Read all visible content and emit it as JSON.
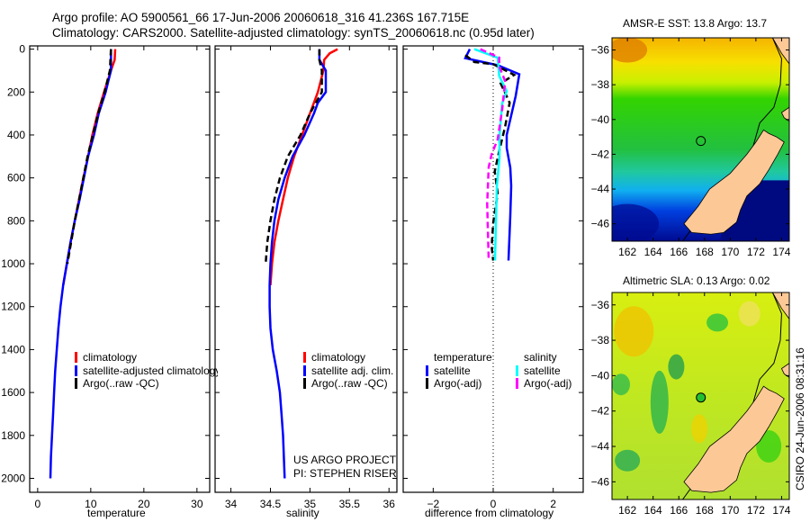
{
  "header": {
    "line1": "Argo profile: AO 5900561_66 17-Jun-2006 20060618_316 41.236S 167.715E",
    "line2": "Climatology: CARS2000. Satellite-adjusted climatology: synTS_20060618.nc (0.95d later)"
  },
  "colors": {
    "climatology": "#ff0000",
    "satellite": "#0000ff",
    "argo": "#000000",
    "sal_satellite": "#00ffff",
    "sal_argo": "#ff00ff"
  },
  "chart_data": [
    {
      "type": "line",
      "title": "",
      "xlabel": "temperature",
      "ylabel": "",
      "xlim": [
        -1.5,
        32.4
      ],
      "ylim": [
        2065,
        -15
      ],
      "xticks": [
        0,
        10,
        20,
        30
      ],
      "yticks": [
        0,
        200,
        400,
        600,
        800,
        1000,
        1200,
        1400,
        1600,
        1800,
        2000
      ],
      "legend": [
        "climatology",
        "satellite-adjusted climatology",
        "Argo(..raw -QC)"
      ],
      "legend_position": "lower-middle",
      "series": [
        {
          "name": "climatology",
          "color": "#ff0000",
          "dash": false,
          "depth": [
            0,
            50,
            100,
            200,
            300,
            400,
            500,
            600,
            700,
            800,
            900,
            1000,
            1100
          ],
          "values": [
            14.6,
            14.5,
            13.8,
            12.5,
            11.3,
            10.3,
            9.5,
            8.6,
            7.8,
            7.0,
            6.2,
            5.5,
            4.8
          ]
        },
        {
          "name": "satellite-adjusted climatology",
          "color": "#0000ff",
          "dash": false,
          "depth": [
            0,
            100,
            150,
            200,
            300,
            400,
            500,
            600,
            700,
            800,
            900,
            1000,
            1100,
            1200,
            1300,
            1400,
            1500,
            1600,
            1700,
            1800,
            1900,
            2000
          ],
          "values": [
            13.8,
            13.8,
            13.3,
            12.8,
            11.5,
            10.6,
            9.5,
            8.7,
            7.9,
            7.0,
            6.2,
            5.5,
            4.8,
            4.3,
            3.9,
            3.6,
            3.3,
            3.1,
            2.9,
            2.7,
            2.5,
            2.4
          ]
        },
        {
          "name": "Argo(..raw -QC)",
          "color": "#000000",
          "dash": true,
          "depth": [
            0,
            100,
            200,
            300,
            400,
            500,
            600,
            700,
            800,
            900,
            1000
          ],
          "values": [
            13.8,
            13.6,
            12.6,
            11.4,
            10.4,
            9.4,
            8.6,
            7.8,
            7.0,
            6.3,
            5.6
          ]
        }
      ]
    },
    {
      "type": "line",
      "xlabel": "salinity",
      "xlim": [
        33.8,
        36.1
      ],
      "ylim": [
        2065,
        -15
      ],
      "xticks": [
        34,
        34.5,
        35,
        35.5,
        36
      ],
      "legend": [
        "climatology",
        "satellite adj. clim.",
        "Argo(..raw -QC)"
      ],
      "legend_position": "lower-middle",
      "annotation": [
        "US ARGO PROJECT",
        "PI: STEPHEN RISER"
      ],
      "series": [
        {
          "name": "climatology",
          "color": "#ff0000",
          "dash": false,
          "depth": [
            0,
            20,
            50,
            100,
            200,
            300,
            400,
            500,
            600,
            700,
            800,
            900,
            1000,
            1100
          ],
          "values": [
            35.35,
            35.25,
            35.18,
            35.17,
            35.1,
            35.0,
            34.9,
            34.8,
            34.72,
            34.66,
            34.6,
            34.55,
            34.52,
            34.5
          ]
        },
        {
          "name": "satellite adj. clim.",
          "color": "#0000ff",
          "dash": false,
          "depth": [
            0,
            50,
            100,
            150,
            200,
            250,
            300,
            400,
            500,
            600,
            700,
            800,
            900,
            1000,
            1100,
            1200,
            1300,
            1400,
            1500,
            1600,
            1700,
            1800,
            1900,
            2000
          ],
          "values": [
            35.12,
            35.12,
            35.2,
            35.2,
            35.2,
            35.1,
            35.05,
            34.93,
            34.78,
            34.68,
            34.6,
            34.55,
            34.52,
            34.5,
            34.49,
            34.49,
            34.5,
            34.53,
            34.58,
            34.62,
            34.64,
            34.66,
            34.67,
            34.68
          ]
        },
        {
          "name": "Argo(..raw -QC)",
          "color": "#000000",
          "dash": true,
          "depth": [
            0,
            50,
            100,
            200,
            300,
            400,
            500,
            600,
            700,
            800,
            900,
            1000
          ],
          "values": [
            35.12,
            35.12,
            35.15,
            35.15,
            35.0,
            34.88,
            34.72,
            34.62,
            34.55,
            34.5,
            34.46,
            34.44
          ]
        }
      ]
    },
    {
      "type": "line",
      "xlabel": "difference from climatology",
      "xlim": [
        -3.0,
        3.0
      ],
      "ylim": [
        2065,
        -15
      ],
      "xticks": [
        -2,
        0,
        2
      ],
      "zero_line": true,
      "legend_groups": [
        {
          "title": "temperature",
          "items": [
            "satellite",
            "Argo(-adj)"
          ]
        },
        {
          "title": "salinity",
          "items": [
            "satellite",
            "Argo(-adj)"
          ]
        }
      ],
      "series": [
        {
          "name": "temperature satellite",
          "color": "#0000ff",
          "dash": false,
          "depth": [
            0,
            42,
            75,
            117,
            218,
            400,
            460,
            553,
            637,
            775,
            985
          ],
          "values": [
            -0.78,
            -0.93,
            0.15,
            0.87,
            0.75,
            0.45,
            0.45,
            0.57,
            0.6,
            0.57,
            0.51
          ]
        },
        {
          "name": "temperature Argo(-adj)",
          "color": "#000000",
          "dash": true,
          "depth": [
            28,
            60,
            70,
            120,
            160,
            250,
            360,
            475,
            570,
            670,
            810,
            920,
            985
          ],
          "values": [
            -0.93,
            -0.63,
            0.0,
            0.7,
            0.25,
            0.55,
            0.4,
            0.2,
            0.05,
            0.15,
            0.0,
            -0.05,
            0.0
          ]
        },
        {
          "name": "salinity satellite",
          "color": "#00ffff",
          "dash": false,
          "depth": [
            0,
            40,
            125,
            196,
            252,
            406,
            503,
            643,
            985
          ],
          "values": [
            -0.63,
            0.15,
            0.2,
            0.45,
            0.3,
            0.21,
            0.21,
            0.12,
            0.06
          ]
        },
        {
          "name": "salinity Argo(-adj)",
          "color": "#ff00ff",
          "dash": true,
          "depth": [
            0,
            40,
            80,
            150,
            280,
            420,
            490,
            550,
            720,
            985
          ],
          "values": [
            -0.43,
            0.2,
            0.2,
            0.4,
            0.3,
            0.15,
            -0.05,
            -0.15,
            -0.2,
            -0.15
          ]
        }
      ]
    },
    {
      "type": "heatmap",
      "title": "AMSR-E SST: 13.8 Argo: 13.7",
      "xlim": [
        160.8,
        174.6
      ],
      "ylim": [
        -47.0,
        -35.3
      ],
      "xticks": [
        162,
        164,
        166,
        168,
        170,
        172,
        174
      ],
      "yticks": [
        -36,
        -38,
        -40,
        -42,
        -44,
        -46
      ],
      "float_position": {
        "lon": 167.715,
        "lat": -41.236
      }
    },
    {
      "type": "heatmap",
      "title": "Altimetric SLA: 0.13 Argo: 0.02",
      "xlim": [
        160.8,
        174.6
      ],
      "ylim": [
        -47.0,
        -35.3
      ],
      "xticks": [
        162,
        164,
        166,
        168,
        170,
        172,
        174
      ],
      "yticks": [
        -36,
        -38,
        -40,
        -42,
        -44,
        -46
      ],
      "float_position": {
        "lon": 167.715,
        "lat": -41.236
      }
    }
  ],
  "footer": {
    "stamp": "CSIRO 24-Jun-2006 08:31:16"
  }
}
